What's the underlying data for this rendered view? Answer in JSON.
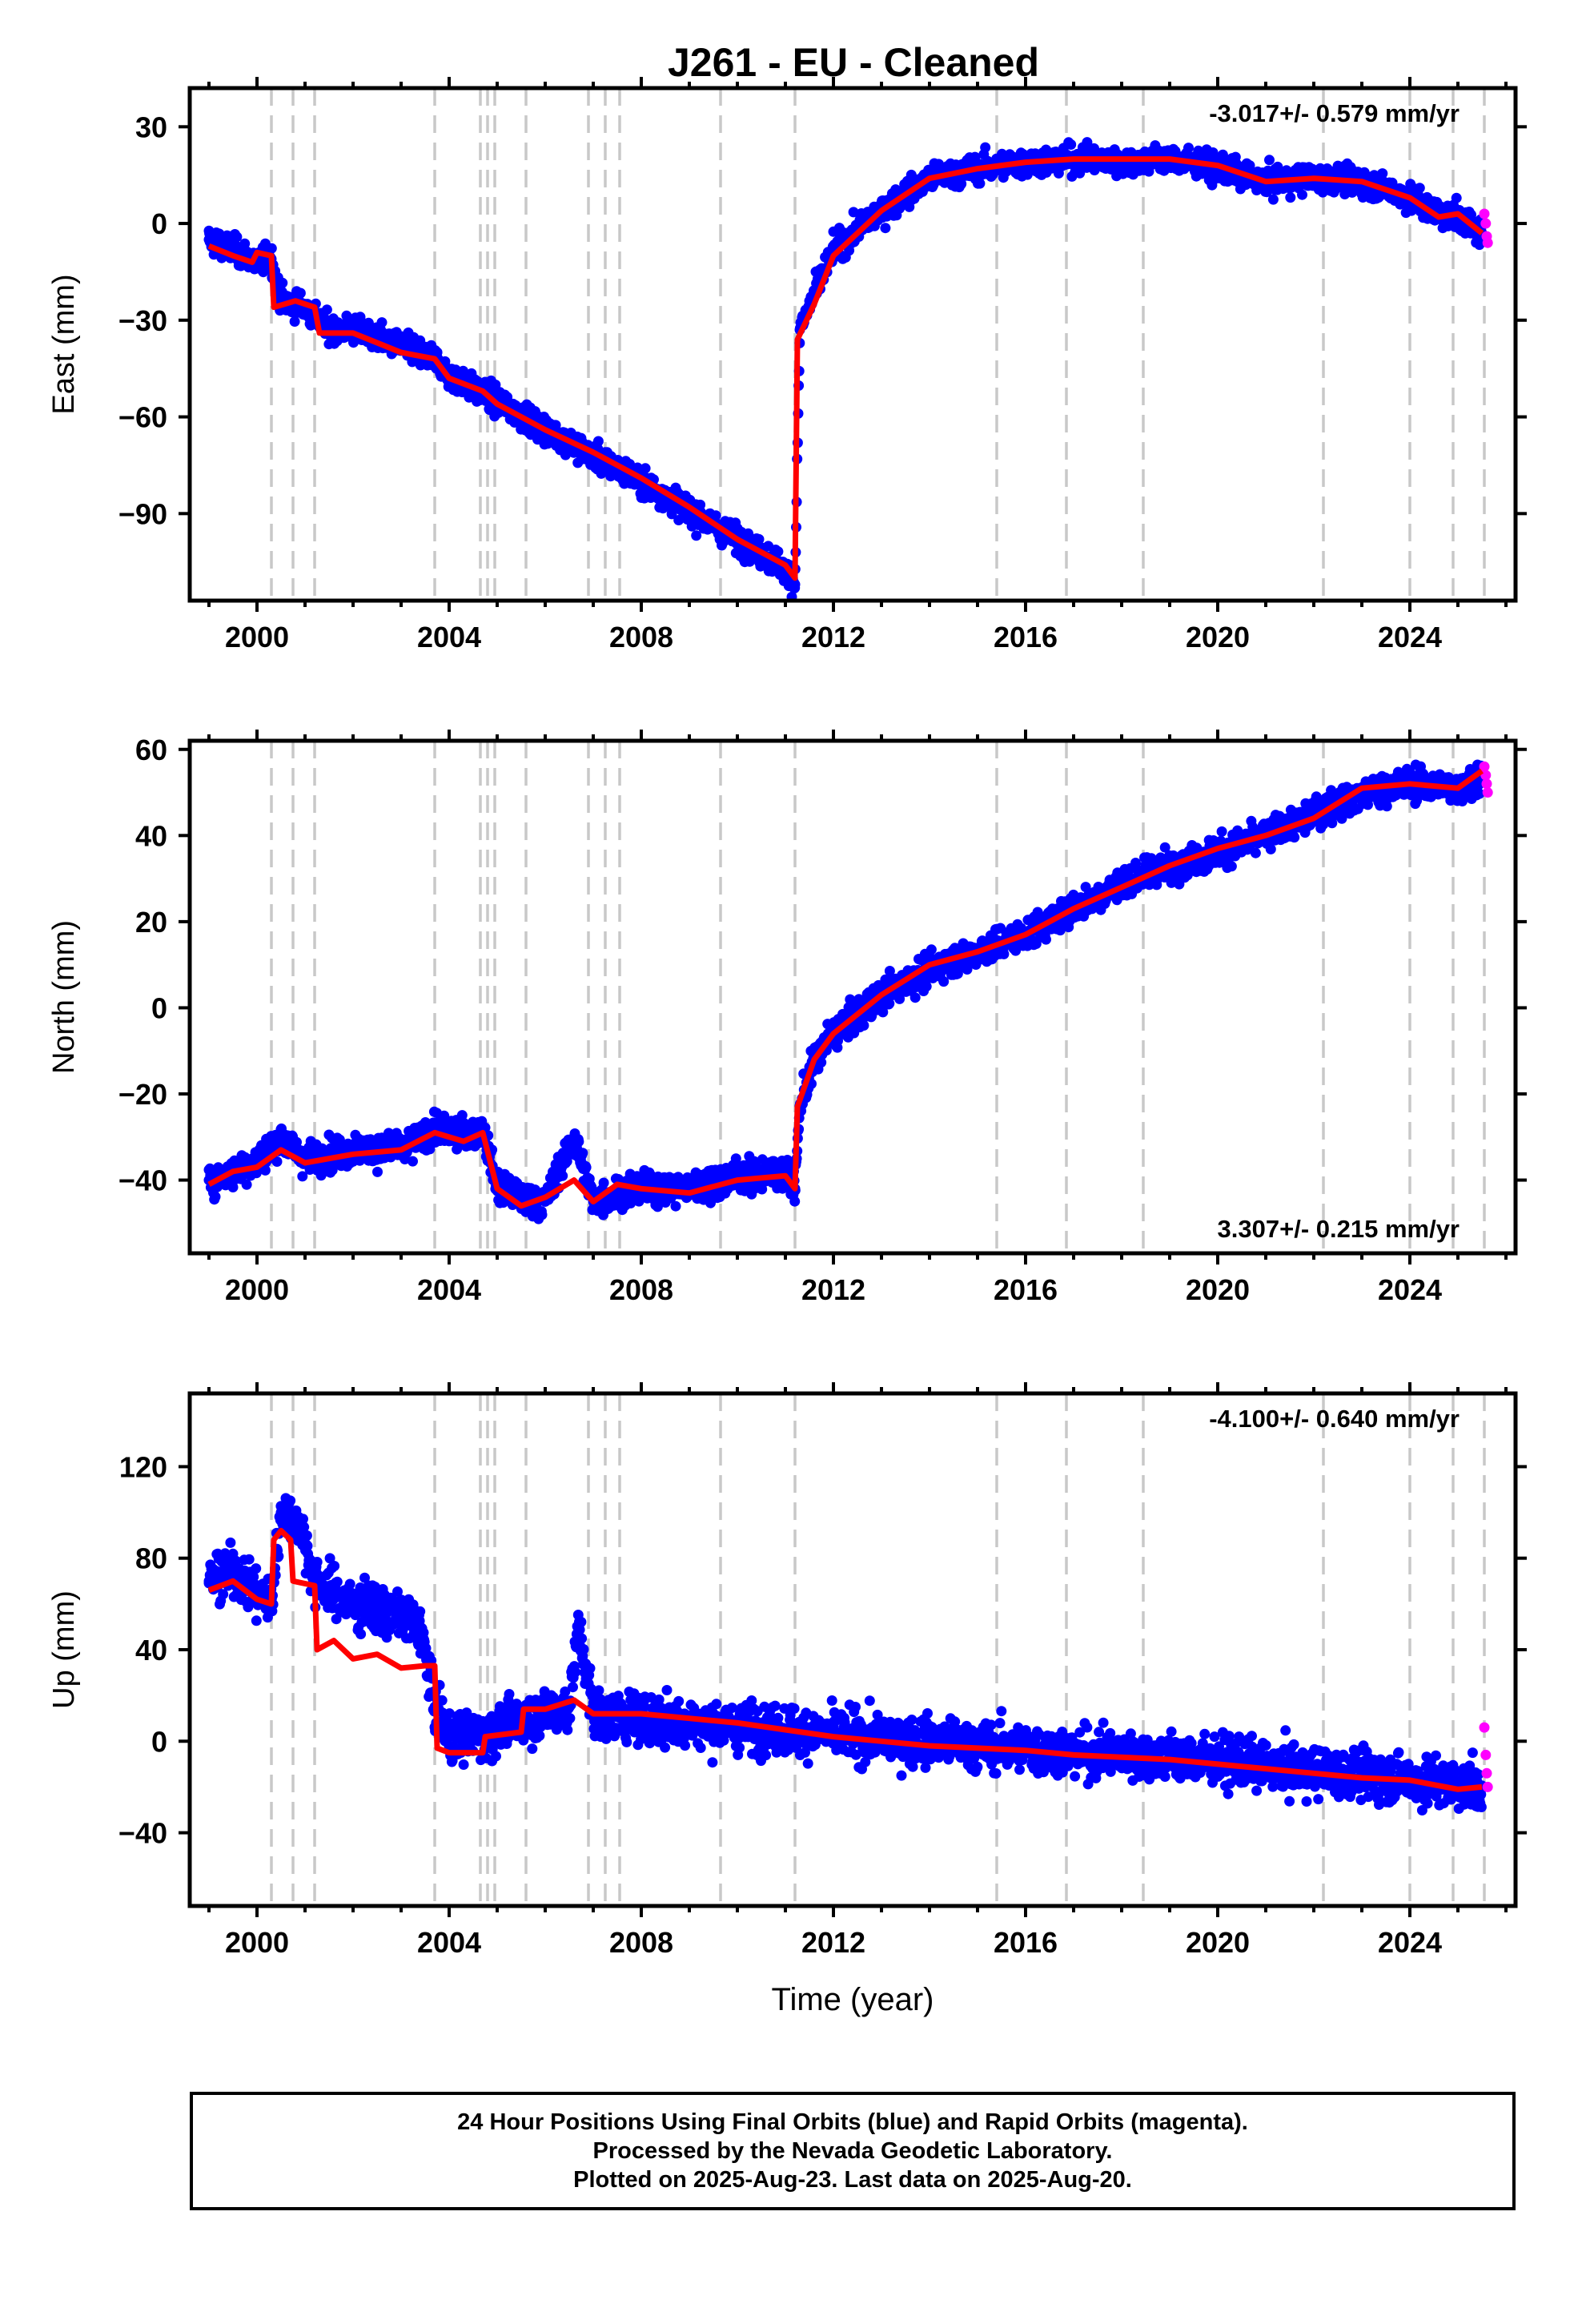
{
  "title": "J261  - EU - Cleaned",
  "footer": {
    "line1": "24 Hour Positions Using Final Orbits (blue) and Rapid Orbits (magenta).",
    "line2": "Processed by the Nevada Geodetic Laboratory.",
    "line3": "Plotted on 2025-Aug-23. Last data on 2025-Aug-20."
  },
  "colors": {
    "final_orbits": "#0000ff",
    "rapid_orbits": "#ff00ff",
    "model": "#ff0000",
    "event_lines": "#c8c8c8"
  },
  "chart_data": [
    {
      "type": "scatter",
      "id": "east",
      "ylabel": "East (mm)",
      "xlabel": "",
      "xlim": [
        1998.6,
        2026.2
      ],
      "ylim": [
        -117,
        42
      ],
      "yticks": [
        30,
        0,
        -30,
        -60,
        -90
      ],
      "xticks": [
        2000,
        2004,
        2008,
        2012,
        2016,
        2020,
        2024
      ],
      "rate_label": "-3.017+/- 0.579 mm/yr",
      "rate_position": "top-right",
      "grid": false,
      "series": [
        {
          "name": "Final Orbits",
          "color": "#0000ff",
          "x": [
            1999.0,
            1999.5,
            2000.0,
            2000.3,
            2000.5,
            2001.0,
            2001.5,
            2002.0,
            2003.0,
            2003.7,
            2004.0,
            2004.6,
            2005.0,
            2006.0,
            2007.0,
            2008.0,
            2009.0,
            2010.0,
            2011.0,
            2011.2,
            2011.3,
            2011.6,
            2012.0,
            2013.0,
            2014.0,
            2015.0,
            2016.0,
            2017.0,
            2018.0,
            2019.0,
            2020.0,
            2021.0,
            2022.0,
            2023.0,
            2024.0,
            2024.6,
            2025.0,
            2025.5
          ],
          "y": [
            -5,
            -8,
            -12,
            -11,
            -24,
            -26,
            -33,
            -33,
            -38,
            -42,
            -47,
            -52,
            -55,
            -64,
            -72,
            -80,
            -89,
            -98,
            -107,
            -112,
            -33,
            -22,
            -8,
            4,
            14,
            17,
            19,
            20,
            19,
            20,
            17,
            13,
            14,
            13,
            8,
            3,
            2,
            -3
          ]
        },
        {
          "name": "Rapid Orbits",
          "color": "#ff00ff",
          "x": [
            2025.55,
            2025.58,
            2025.6,
            2025.62
          ],
          "y": [
            3,
            0,
            -4,
            -6
          ]
        },
        {
          "name": "Model",
          "color": "#ff0000",
          "x": [
            1999.0,
            1999.5,
            1999.9,
            2000.0,
            2000.3,
            2000.35,
            2000.8,
            2001.2,
            2001.3,
            2002.0,
            2003.0,
            2003.7,
            2004.0,
            2004.7,
            2005.0,
            2006.0,
            2007.0,
            2008.0,
            2009.0,
            2010.0,
            2011.0,
            2011.2,
            2011.25,
            2011.6,
            2012.0,
            2013.0,
            2014.0,
            2015.0,
            2016.0,
            2017.0,
            2018.0,
            2019.0,
            2020.0,
            2021.0,
            2022.0,
            2023.0,
            2024.0,
            2024.6,
            2025.0,
            2025.5
          ],
          "y": [
            -7,
            -10,
            -12,
            -9,
            -10,
            -26,
            -24,
            -26,
            -34,
            -34,
            -40,
            -42,
            -48,
            -52,
            -56,
            -64,
            -71,
            -79,
            -88,
            -98,
            -106,
            -110,
            -36,
            -25,
            -10,
            4,
            14,
            17,
            19,
            20,
            20,
            20,
            18,
            13,
            14,
            13,
            8,
            2,
            3,
            -3
          ]
        }
      ]
    },
    {
      "type": "scatter",
      "id": "north",
      "ylabel": "North (mm)",
      "xlabel": "",
      "xlim": [
        1998.6,
        2026.2
      ],
      "ylim": [
        -57,
        62
      ],
      "yticks": [
        60,
        40,
        20,
        0,
        -20,
        -40
      ],
      "xticks": [
        2000,
        2004,
        2008,
        2012,
        2016,
        2020,
        2024
      ],
      "rate_label": "3.307+/- 0.215 mm/yr",
      "rate_position": "bottom-right",
      "grid": false,
      "series": [
        {
          "name": "Final Orbits",
          "color": "#0000ff",
          "x": [
            1999.0,
            1999.5,
            2000.0,
            2000.5,
            2001.0,
            2002.0,
            2003.0,
            2003.7,
            2004.3,
            2004.7,
            2005.0,
            2005.5,
            2006.0,
            2006.6,
            2007.0,
            2007.5,
            2008.0,
            2009.0,
            2010.0,
            2011.0,
            2011.2,
            2011.3,
            2011.6,
            2012.0,
            2013.0,
            2014.0,
            2015.0,
            2016.0,
            2017.0,
            2018.0,
            2019.0,
            2020.0,
            2021.0,
            2022.0,
            2023.0,
            2024.0,
            2025.0,
            2025.5
          ],
          "y": [
            -40,
            -38,
            -36,
            -30,
            -35,
            -33,
            -33,
            -28,
            -30,
            -28,
            -42,
            -44,
            -45,
            -30,
            -45,
            -43,
            -42,
            -42,
            -39,
            -38,
            -42,
            -23,
            -12,
            -6,
            3,
            9,
            13,
            17,
            23,
            29,
            33,
            36,
            40,
            45,
            50,
            52,
            51,
            54
          ]
        },
        {
          "name": "Rapid Orbits",
          "color": "#ff00ff",
          "x": [
            2025.55,
            2025.58,
            2025.6,
            2025.62
          ],
          "y": [
            56,
            54,
            52,
            50
          ]
        },
        {
          "name": "Model",
          "color": "#ff0000",
          "x": [
            1999.0,
            1999.5,
            2000.0,
            2000.5,
            2001.0,
            2002.0,
            2003.0,
            2003.7,
            2004.3,
            2004.7,
            2005.0,
            2005.5,
            2006.0,
            2006.6,
            2007.0,
            2007.5,
            2008.0,
            2009.0,
            2010.0,
            2011.0,
            2011.2,
            2011.25,
            2011.6,
            2012.0,
            2013.0,
            2014.0,
            2015.0,
            2016.0,
            2017.0,
            2018.0,
            2019.0,
            2020.0,
            2021.0,
            2022.0,
            2023.0,
            2024.0,
            2025.0,
            2025.5
          ],
          "y": [
            -41,
            -38,
            -37,
            -33,
            -36,
            -34,
            -33,
            -29,
            -31,
            -29,
            -42,
            -46,
            -44,
            -40,
            -45,
            -41,
            -42,
            -43,
            -40,
            -39,
            -42,
            -23,
            -12,
            -6,
            3,
            10,
            13,
            17,
            23,
            28,
            33,
            37,
            40,
            44,
            51,
            52,
            51,
            55
          ]
        }
      ]
    },
    {
      "type": "scatter",
      "id": "up",
      "ylabel": "Up (mm)",
      "xlabel": "Time (year)",
      "xlim": [
        1998.6,
        2026.2
      ],
      "ylim": [
        -72,
        152
      ],
      "yticks": [
        120,
        80,
        40,
        0,
        -40
      ],
      "xticks": [
        2000,
        2004,
        2008,
        2012,
        2016,
        2020,
        2024
      ],
      "rate_label": "-4.100+/- 0.640 mm/yr",
      "rate_position": "top-right",
      "grid": false,
      "series": [
        {
          "name": "Final Orbits",
          "color": "#0000ff",
          "x": [
            1999.0,
            1999.5,
            2000.0,
            2000.3,
            2000.5,
            2000.9,
            2001.2,
            2001.6,
            2002.0,
            2002.5,
            2003.0,
            2003.4,
            2003.7,
            2004.0,
            2004.5,
            2005.0,
            2005.5,
            2006.0,
            2006.5,
            2006.7,
            2007.0,
            2008.0,
            2009.0,
            2010.0,
            2011.0,
            2012.0,
            2013.0,
            2014.0,
            2015.0,
            2016.0,
            2017.0,
            2018.0,
            2019.0,
            2020.0,
            2021.0,
            2022.0,
            2023.0,
            2024.0,
            2025.0,
            2025.5
          ],
          "y": [
            70,
            75,
            65,
            60,
            100,
            95,
            70,
            65,
            60,
            58,
            55,
            50,
            15,
            2,
            3,
            5,
            10,
            12,
            15,
            50,
            12,
            10,
            8,
            6,
            5,
            3,
            1,
            0,
            -2,
            -3,
            -5,
            -6,
            -7,
            -9,
            -11,
            -13,
            -15,
            -17,
            -19,
            -20
          ]
        },
        {
          "name": "Rapid Orbits",
          "color": "#ff00ff",
          "x": [
            2025.55,
            2025.58,
            2025.6,
            2025.62
          ],
          "y": [
            6,
            -6,
            -14,
            -20
          ]
        },
        {
          "name": "Model",
          "color": "#ff0000",
          "x": [
            1999.0,
            1999.5,
            2000.0,
            2000.3,
            2000.35,
            2000.5,
            2000.7,
            2000.75,
            2001.2,
            2001.25,
            2001.6,
            2002.0,
            2002.5,
            2003.0,
            2003.5,
            2003.7,
            2003.75,
            2004.0,
            2004.7,
            2004.75,
            2005.5,
            2005.55,
            2006.0,
            2006.6,
            2007.0,
            2008.0,
            2009.0,
            2010.0,
            2011.0,
            2012.0,
            2013.0,
            2014.0,
            2015.0,
            2016.0,
            2017.0,
            2018.0,
            2019.0,
            2020.0,
            2021.0,
            2022.0,
            2023.0,
            2024.0,
            2025.0,
            2025.5
          ],
          "y": [
            66,
            70,
            62,
            60,
            88,
            92,
            88,
            70,
            68,
            40,
            44,
            36,
            38,
            32,
            33,
            33,
            -3,
            -5,
            -5,
            2,
            4,
            14,
            14,
            18,
            12,
            12,
            10,
            8,
            5,
            2,
            0,
            -2,
            -3,
            -4,
            -6,
            -7,
            -8,
            -10,
            -12,
            -14,
            -16,
            -17,
            -21,
            -20
          ]
        }
      ]
    }
  ],
  "event_years": [
    2000.3,
    2000.75,
    2001.2,
    2003.7,
    2004.65,
    2004.8,
    2004.95,
    2005.6,
    2006.9,
    2007.25,
    2007.55,
    2009.65,
    2011.2,
    2015.4,
    2016.85,
    2018.45,
    2022.2,
    2024.0,
    2024.9,
    2025.55
  ]
}
